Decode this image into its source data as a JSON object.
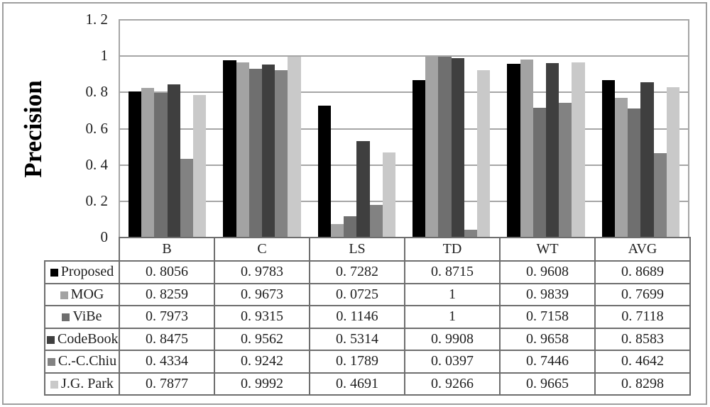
{
  "figure": {
    "ylabel": "Precision",
    "border_color": "#9e9e9e",
    "gridline_color": "#a6a6a6",
    "table_border_color": "#6e6e6e"
  },
  "chart_data": {
    "type": "bar",
    "title": "",
    "xlabel": "",
    "ylabel": "Precision",
    "ylim": [
      0,
      1.2
    ],
    "yticks": [
      0,
      0.2,
      0.4,
      0.6,
      0.8,
      1,
      1.2
    ],
    "ytick_labels": [
      "0",
      "0. 2",
      "0. 4",
      "0. 6",
      "0. 8",
      "1",
      "1. 2"
    ],
    "grid": true,
    "legend_position": "table-below",
    "categories": [
      "B",
      "C",
      "LS",
      "TD",
      "WT",
      "AVG"
    ],
    "series": [
      {
        "name": "Proposed",
        "color": "#000000",
        "values": [
          0.8056,
          0.9783,
          0.7282,
          0.8715,
          0.9608,
          0.8689
        ]
      },
      {
        "name": "MOG",
        "color": "#a3a3a3",
        "values": [
          0.8259,
          0.9673,
          0.0725,
          1,
          0.9839,
          0.7699
        ]
      },
      {
        "name": "ViBe",
        "color": "#6f6f6f",
        "values": [
          0.7973,
          0.9315,
          0.1146,
          1,
          0.7158,
          0.7118
        ]
      },
      {
        "name": "CodeBook",
        "color": "#3f3f3f",
        "values": [
          0.8475,
          0.9562,
          0.5314,
          0.9908,
          0.9658,
          0.8583
        ]
      },
      {
        "name": "C.-C.Chiu",
        "color": "#828282",
        "values": [
          0.4334,
          0.9242,
          0.1789,
          0.0397,
          0.7446,
          0.4642
        ]
      },
      {
        "name": "J.G. Park",
        "color": "#c9c9c9",
        "values": [
          0.7877,
          0.9992,
          0.4691,
          0.9266,
          0.9665,
          0.8298
        ]
      }
    ]
  },
  "table": {
    "headers": [
      "B",
      "C",
      "LS",
      "TD",
      "WT",
      "AVG"
    ],
    "rows": [
      {
        "label": "Proposed",
        "swatch": "#000000",
        "values": [
          "0. 8056",
          "0. 9783",
          "0. 7282",
          "0. 8715",
          "0. 9608",
          "0. 8689"
        ]
      },
      {
        "label": "MOG",
        "swatch": "#a3a3a3",
        "values": [
          "0. 8259",
          "0. 9673",
          "0. 0725",
          "1",
          "0. 9839",
          "0. 7699"
        ]
      },
      {
        "label": "ViBe",
        "swatch": "#6f6f6f",
        "values": [
          "0. 7973",
          "0. 9315",
          "0. 1146",
          "1",
          "0. 7158",
          "0. 7118"
        ]
      },
      {
        "label": "CodeBook",
        "swatch": "#3f3f3f",
        "values": [
          "0. 8475",
          "0. 9562",
          "0. 5314",
          "0. 9908",
          "0. 9658",
          "0. 8583"
        ]
      },
      {
        "label": "C.-C.Chiu",
        "swatch": "#828282",
        "values": [
          "0. 4334",
          "0. 9242",
          "0. 1789",
          "0. 0397",
          "0. 7446",
          "0. 4642"
        ]
      },
      {
        "label": "J.G. Park",
        "swatch": "#c9c9c9",
        "values": [
          "0. 7877",
          "0. 9992",
          "0. 4691",
          "0. 9266",
          "0. 9665",
          "0. 8298"
        ]
      }
    ]
  }
}
